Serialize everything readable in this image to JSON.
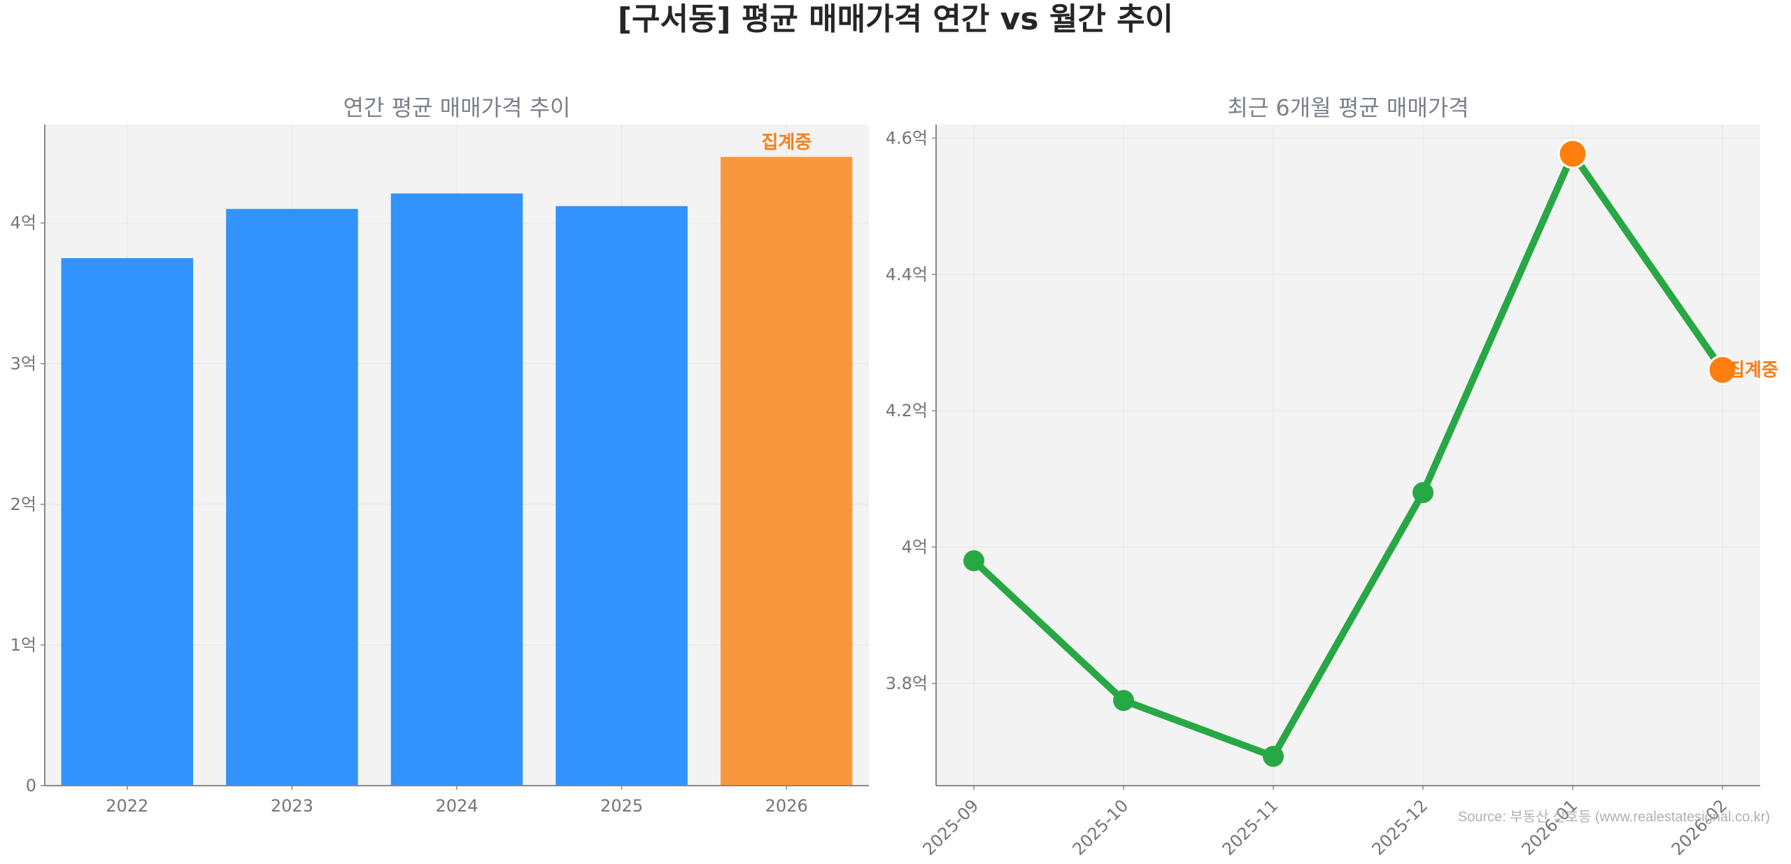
{
  "main_title": "[구서동] 평균 매매가격 연간 vs 월간 추이",
  "source_text": "Source: 부동산 신호등 (www.realestatesignal.co.kr)",
  "colors": {
    "bar": "#3193fb",
    "highlight": "#f9973f",
    "highlight_text": "#f57f17",
    "line": "#28a745",
    "panel_bg": "#f3f3f3",
    "grid": "#e4e4e4",
    "axis": "#888888",
    "tick_text": "#757575",
    "subtitle_text": "#7b7f88",
    "title_text": "#262626"
  },
  "chart_data": [
    {
      "type": "bar",
      "title": "연간 평균 매매가격 추이",
      "categories": [
        "2022",
        "2023",
        "2024",
        "2025",
        "2026"
      ],
      "values": [
        3.75,
        4.1,
        4.21,
        4.12,
        4.47
      ],
      "highlight_index": 4,
      "highlight_label": "집계중",
      "ylim": [
        0,
        4.7
      ],
      "yticks": [
        0,
        1,
        2,
        3,
        4
      ],
      "ytick_labels": [
        "0",
        "1억",
        "2억",
        "3억",
        "4억"
      ],
      "grid": true
    },
    {
      "type": "line",
      "title": "최근 6개월 평균 매매가격",
      "categories": [
        "2025-09",
        "2025-10",
        "2025-11",
        "2025-12",
        "2026-01",
        "2026-02"
      ],
      "values": [
        3.98,
        3.775,
        3.693,
        4.08,
        4.577,
        4.26
      ],
      "highlight_indices": [
        4,
        5
      ],
      "highlight_label": "집계중",
      "highlight_label_index": 5,
      "ylim": [
        3.65,
        4.62
      ],
      "yticks": [
        3.8,
        4.0,
        4.2,
        4.4,
        4.6
      ],
      "ytick_labels": [
        "3.8억",
        "4억",
        "4.2억",
        "4.4억",
        "4.6억"
      ],
      "grid": true
    }
  ]
}
